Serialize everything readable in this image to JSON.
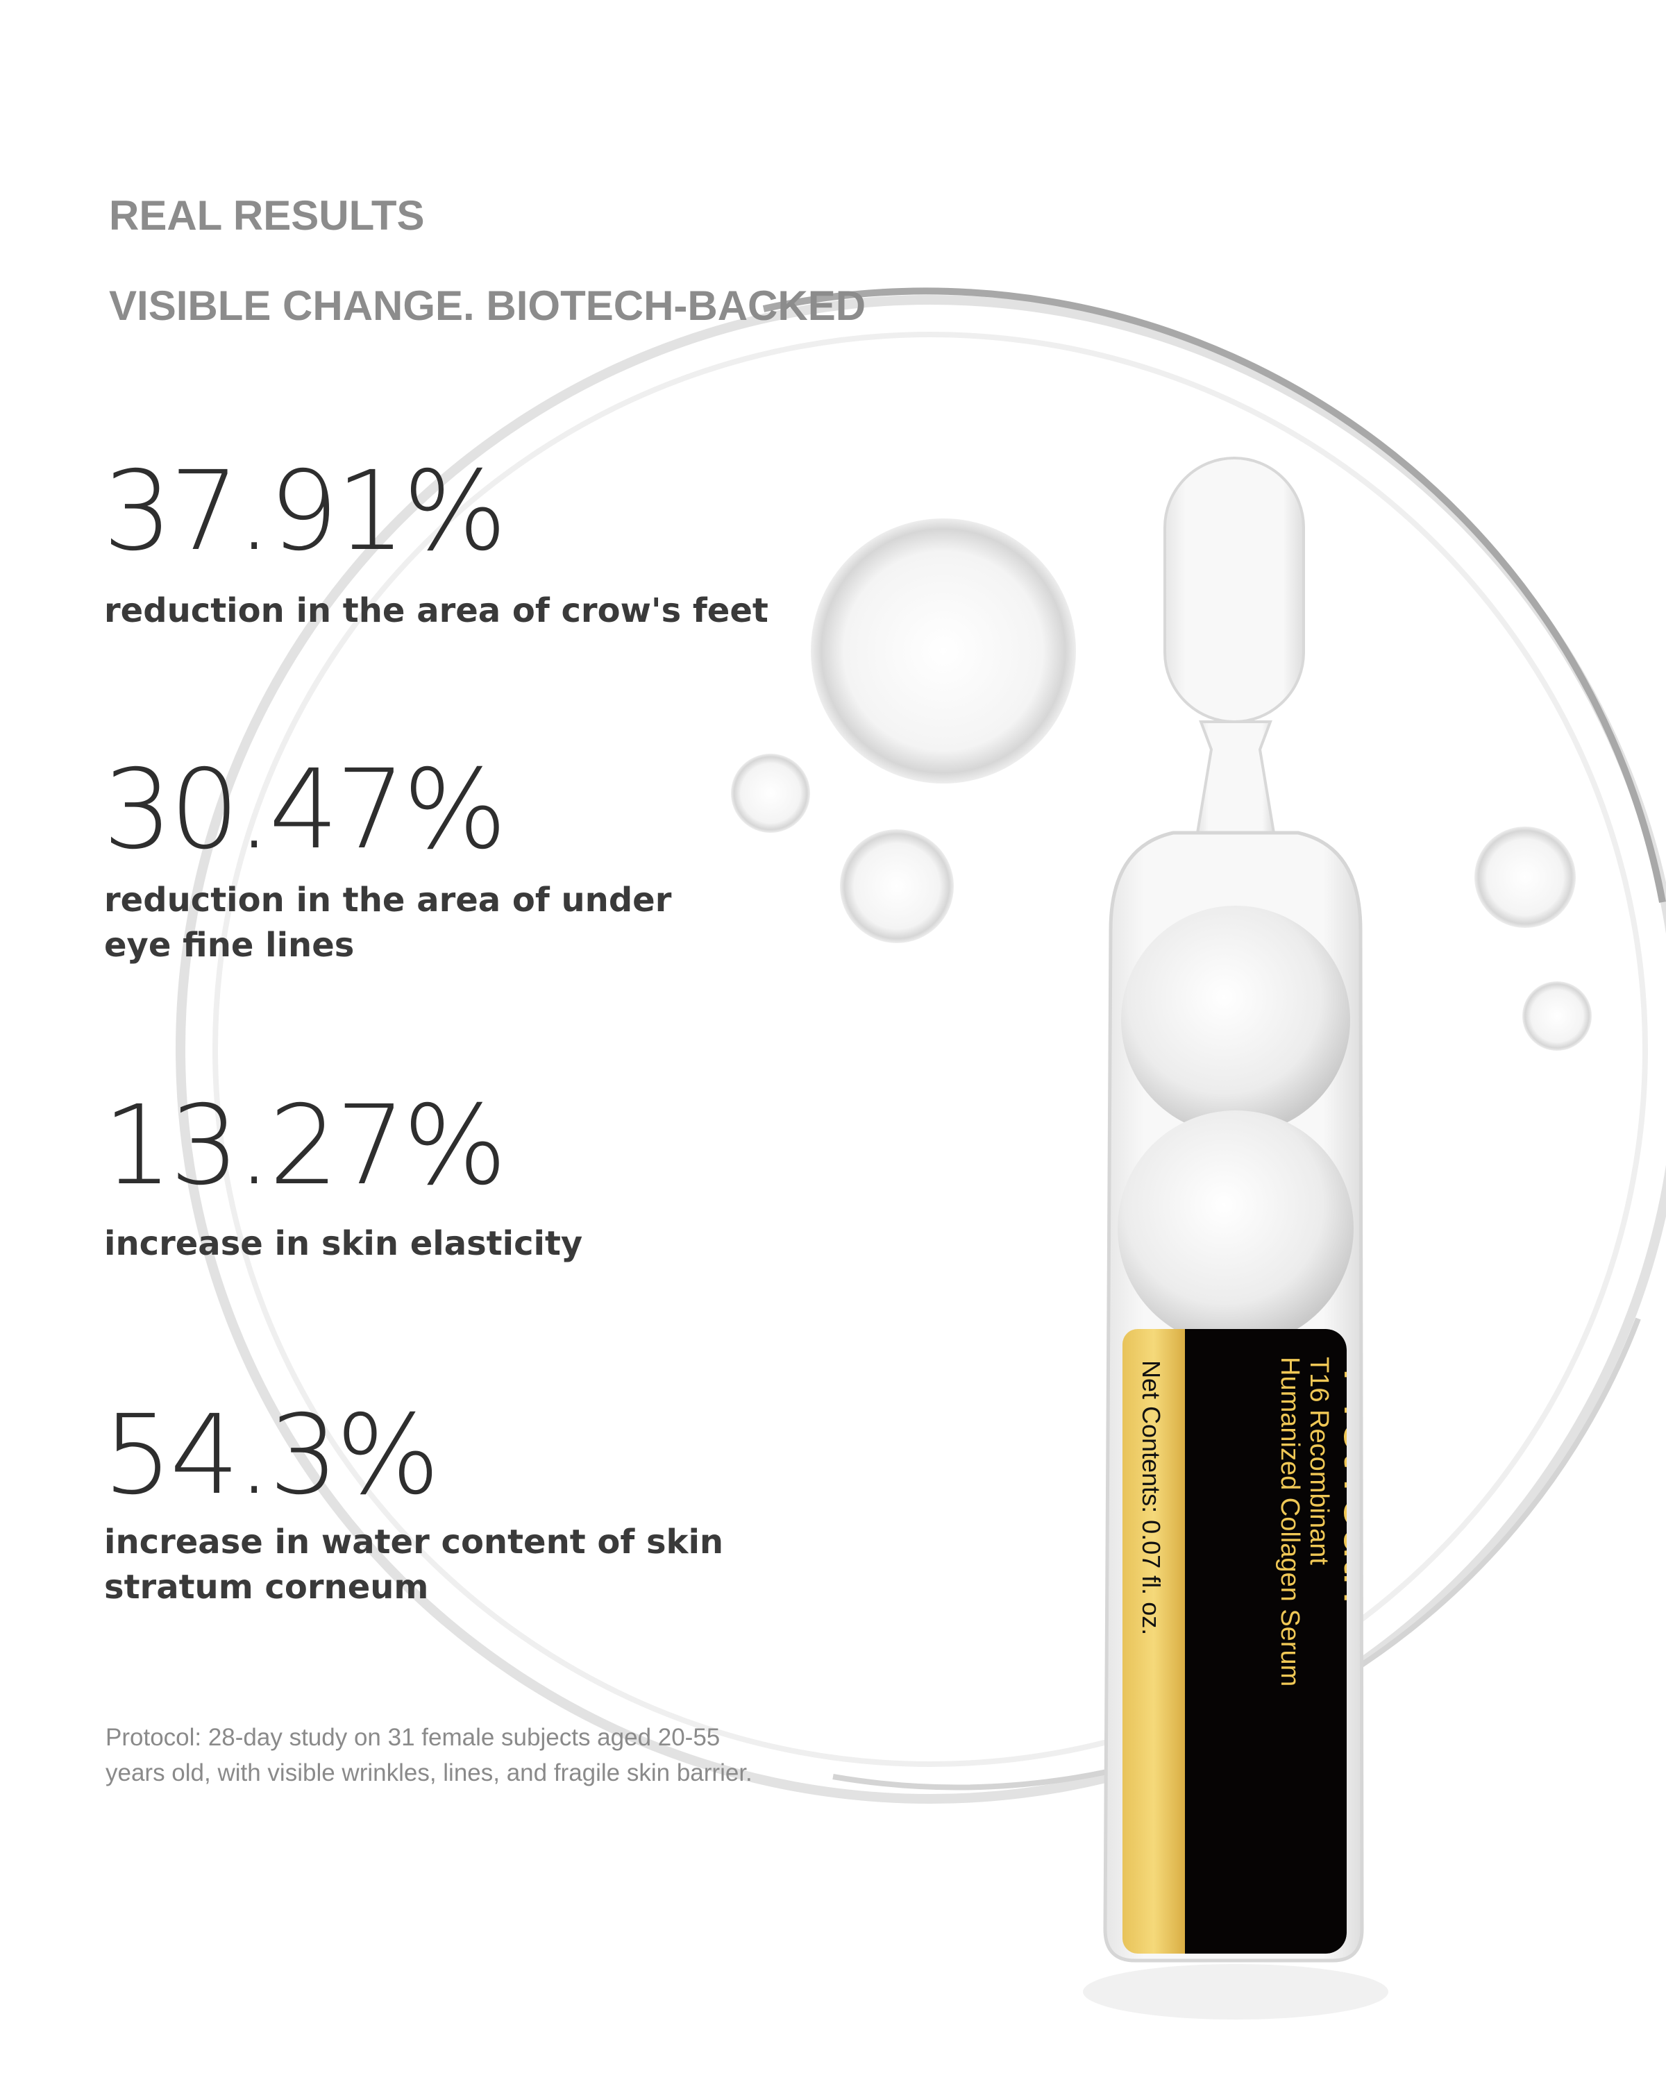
{
  "header": {
    "kicker": "REAL RESULTS",
    "subtitle": "VISIBLE CHANGE. BIOTECH-BACKED"
  },
  "stats": [
    {
      "value": "37.91%",
      "description": "reduction in the area of crow's feet"
    },
    {
      "value": "30.47%",
      "description_lines": [
        "reduction in the area of under",
        "eye fine lines"
      ]
    },
    {
      "value": "13.27%",
      "description": "increase in skin elasticity"
    },
    {
      "value": "54.3%",
      "description_lines": [
        "increase in water content of skin",
        "stratum corneum"
      ]
    }
  ],
  "footnote": {
    "line1": "Protocol: 28-day study on 31 female subjects aged 20-55",
    "line2": "years old, with visible wrinkles, lines, and fragile skin barrier."
  },
  "product_label": {
    "brand": "ProtYouth",
    "name_line1": "T16 Recombinant",
    "name_line2": "Humanized Collagen Serum",
    "net_contents": "Net Contents: 0.07 fl. oz."
  },
  "colors": {
    "gold": "#f0c856",
    "label_black": "#060404",
    "heading_gray": "#8c8c8c",
    "text_dark": "#3a3a3a"
  }
}
